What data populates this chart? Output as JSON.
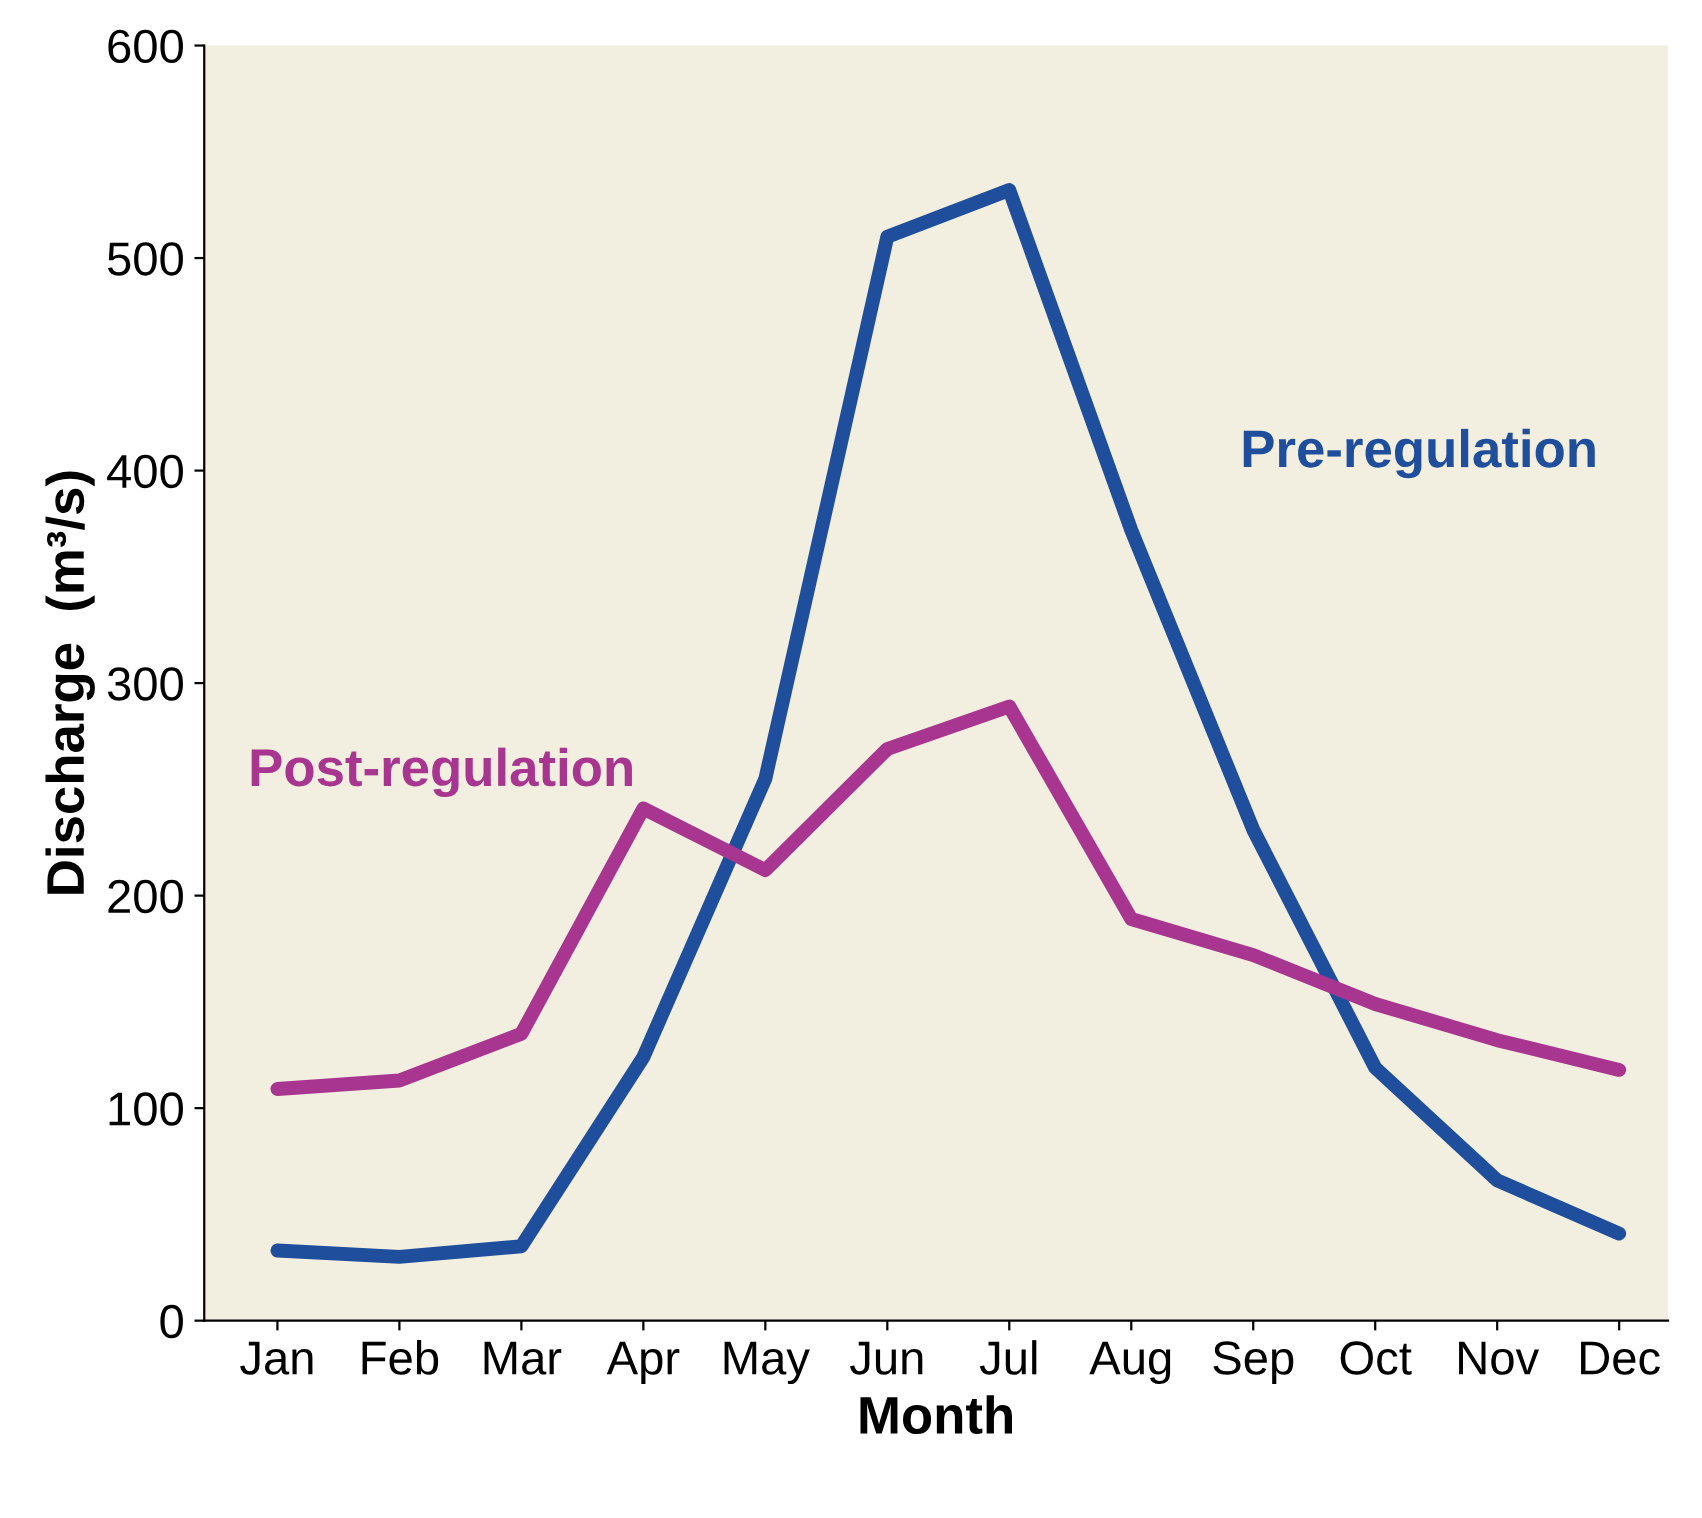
{
  "chart_data": {
    "type": "line",
    "xlabel": "Month",
    "ylabel": "Discharge  (m³/s)",
    "categories": [
      "Jan",
      "Feb",
      "Mar",
      "Apr",
      "May",
      "Jun",
      "Jul",
      "Aug",
      "Sep",
      "Oct",
      "Nov",
      "Dec"
    ],
    "series": [
      {
        "name": "Pre-regulation",
        "color": "#1f4e9c",
        "values": [
          33,
          30,
          35,
          124,
          255,
          510,
          532,
          372,
          231,
          119,
          66,
          41
        ]
      },
      {
        "name": "Post-regulation",
        "color": "#a8358f",
        "values": [
          109,
          113,
          135,
          241,
          212,
          269,
          289,
          189,
          172,
          149,
          132,
          118
        ]
      }
    ],
    "ylim": [
      0,
      600
    ],
    "yticks": [
      0,
      100,
      200,
      300,
      400,
      500,
      600
    ],
    "grid": false,
    "legend": false,
    "marker": "none",
    "line_style": "solid"
  }
}
